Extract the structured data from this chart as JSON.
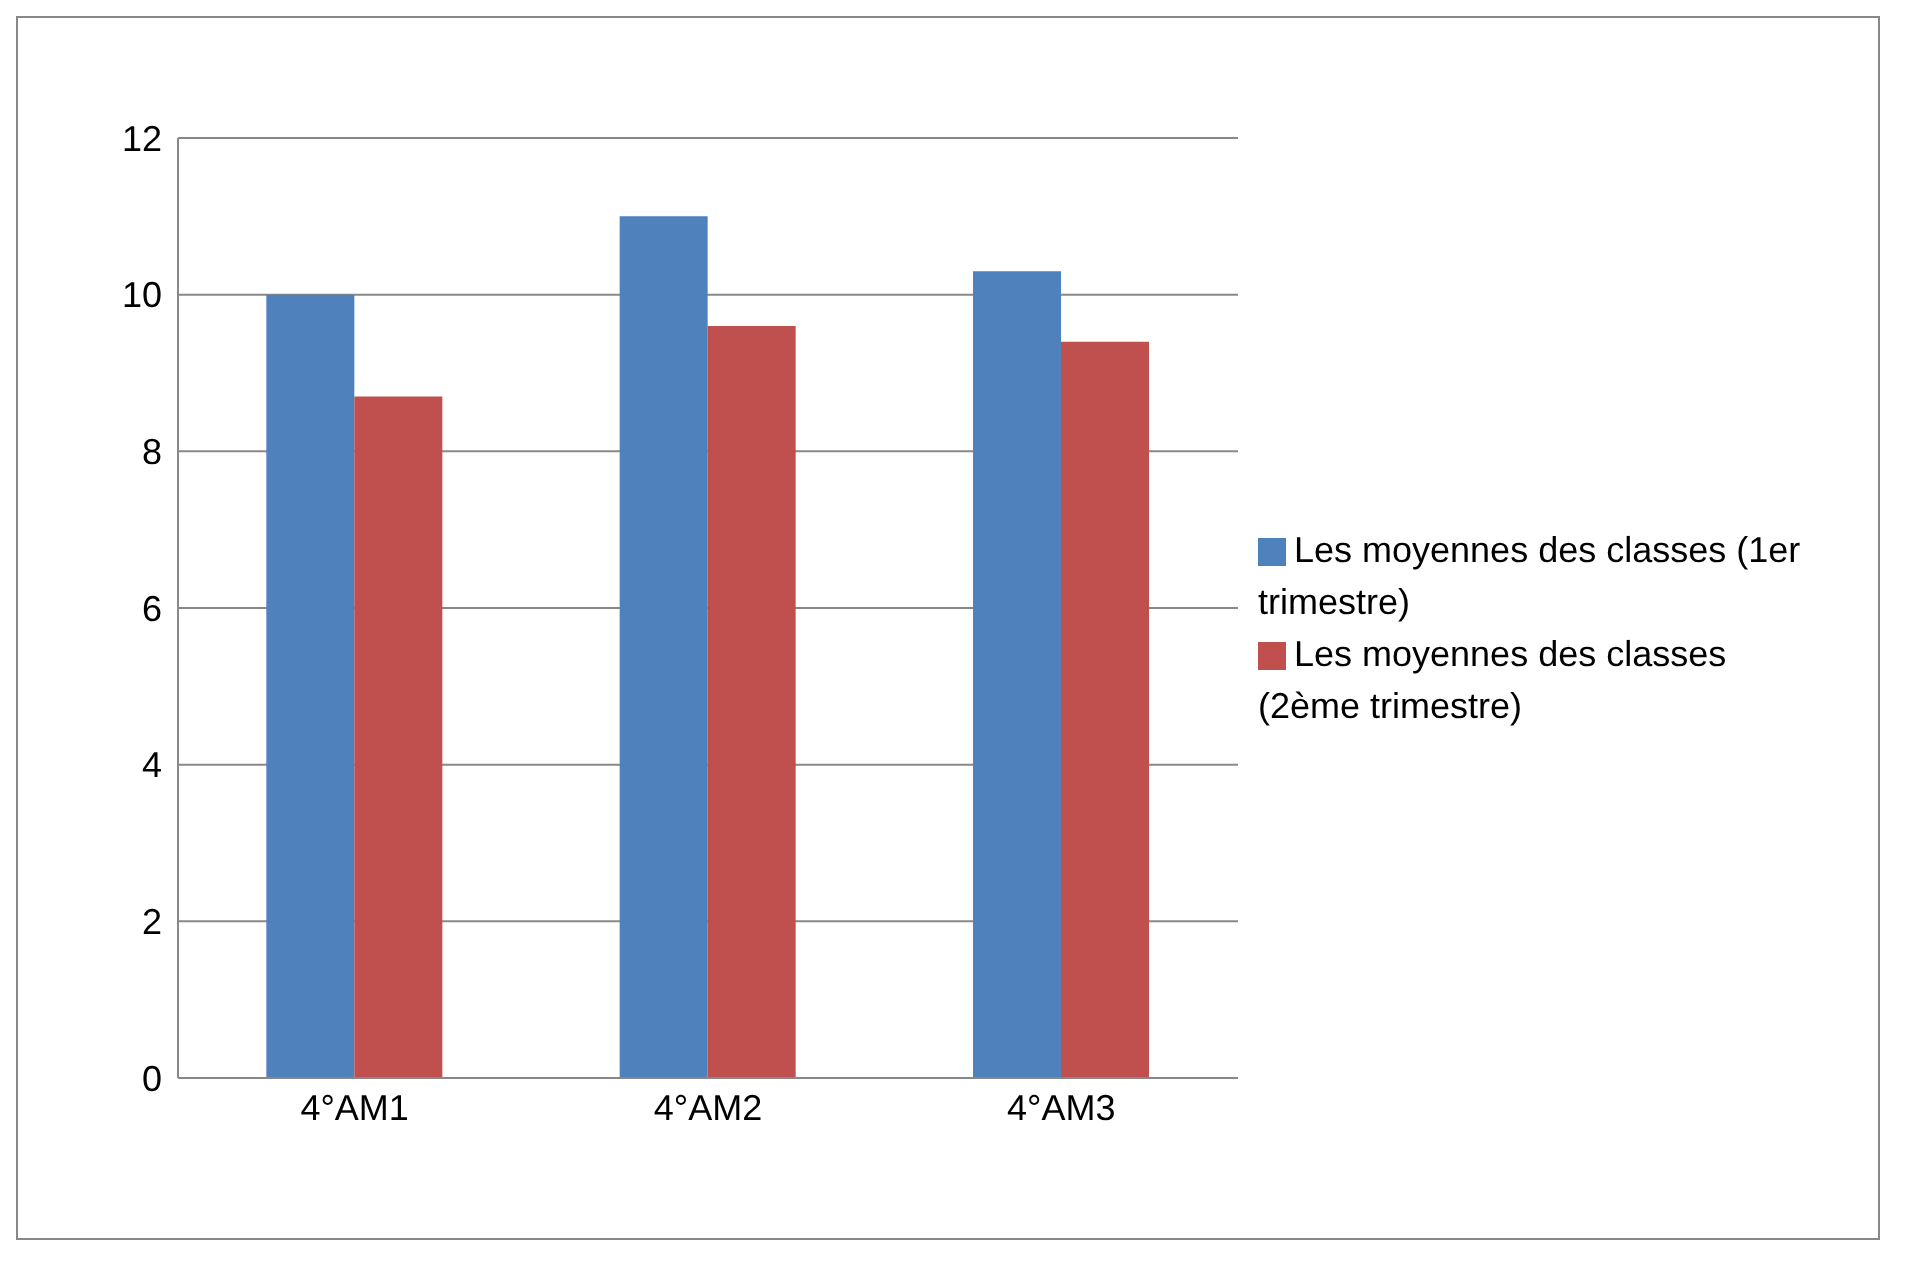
{
  "chart_data": {
    "type": "bar",
    "categories": [
      "4°AM1",
      "4°AM2",
      "4°AM3"
    ],
    "series": [
      {
        "name": "Les moyennes des classes (1er trimestre)",
        "color": "#4f81bd",
        "values": [
          10.0,
          11.0,
          10.3
        ]
      },
      {
        "name": "Les moyennes des classes (2ème  trimestre)",
        "color": "#c0504d",
        "values": [
          8.7,
          9.6,
          9.4
        ]
      }
    ],
    "ylim": [
      0,
      12
    ],
    "yticks": [
      0,
      2,
      4,
      6,
      8,
      10,
      12
    ],
    "grid": "y",
    "legend": "right"
  }
}
